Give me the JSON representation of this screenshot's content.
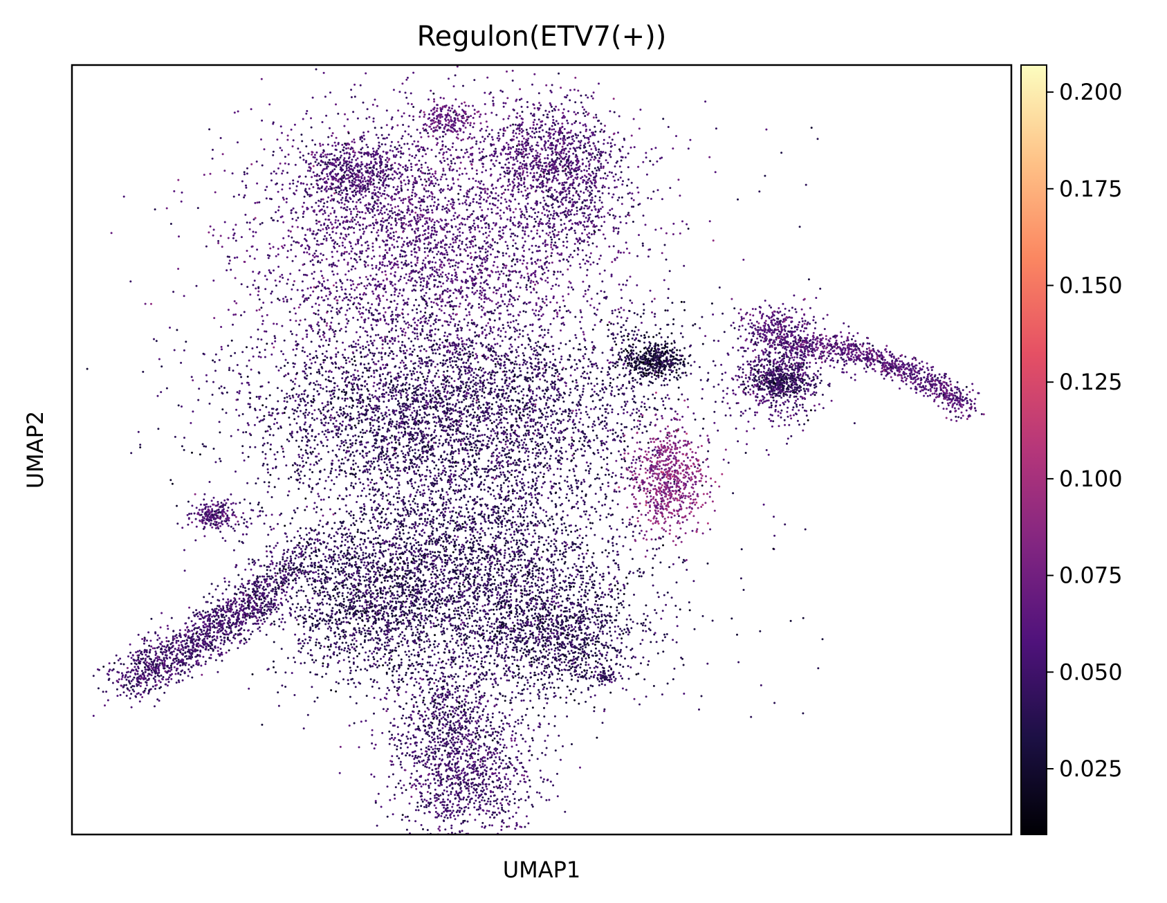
{
  "chart_data": {
    "type": "scatter",
    "title": "Regulon(ETV7(+))",
    "xlabel": "UMAP1",
    "ylabel": "UMAP2",
    "colormap": "magma",
    "colorbar": {
      "range": [
        0.008,
        0.207
      ],
      "ticks": [
        0.025,
        0.05,
        0.075,
        0.1,
        0.125,
        0.15,
        0.175,
        0.2
      ],
      "tick_labels": [
        "0.025",
        "0.050",
        "0.075",
        "0.100",
        "0.125",
        "0.150",
        "0.175",
        "0.200"
      ]
    },
    "xlim": [
      0,
      100
    ],
    "ylim": [
      0,
      100
    ],
    "grid": false,
    "legend": "none",
    "clusters": [
      {
        "id": "upper-main",
        "cx": 38,
        "cy": 77,
        "sx": 10,
        "sy": 9,
        "n": 3600,
        "value": 0.058
      },
      {
        "id": "upper-top-left",
        "cx": 30,
        "cy": 86,
        "sx": 2.8,
        "sy": 2.2,
        "n": 500,
        "value": 0.055
      },
      {
        "id": "upper-top-peak",
        "cx": 40,
        "cy": 93,
        "sx": 1.6,
        "sy": 1.2,
        "n": 180,
        "value": 0.068
      },
      {
        "id": "upper-top-right",
        "cx": 51,
        "cy": 89,
        "sx": 3.6,
        "sy": 3.4,
        "n": 700,
        "value": 0.057
      },
      {
        "id": "upper-right-flank",
        "cx": 54,
        "cy": 83,
        "sx": 2.5,
        "sy": 4,
        "n": 400,
        "value": 0.05
      },
      {
        "id": "middle-band",
        "cx": 40,
        "cy": 55,
        "sx": 11,
        "sy": 6,
        "n": 3800,
        "value": 0.042
      },
      {
        "id": "lower-main",
        "cx": 42,
        "cy": 34,
        "sx": 9,
        "sy": 8,
        "n": 3800,
        "value": 0.04
      },
      {
        "id": "lower-left-lobe",
        "cx": 31,
        "cy": 30,
        "sx": 4,
        "sy": 5,
        "n": 900,
        "value": 0.038
      },
      {
        "id": "lower-right-lobe",
        "cx": 52,
        "cy": 26,
        "sx": 4.5,
        "sy": 4,
        "n": 900,
        "value": 0.038
      },
      {
        "id": "bottom-blob",
        "cx": 41.5,
        "cy": 8,
        "sx": 4,
        "sy": 4.5,
        "n": 1100,
        "value": 0.05
      },
      {
        "id": "bottom-stem",
        "cx": 40,
        "cy": 17,
        "sx": 2.5,
        "sy": 4,
        "n": 400,
        "value": 0.045
      },
      {
        "id": "purple-island",
        "cx": 63.5,
        "cy": 46,
        "sx": 2,
        "sy": 3.4,
        "n": 700,
        "value": 0.085
      },
      {
        "id": "dark-island",
        "cx": 62,
        "cy": 61.5,
        "sx": 1.6,
        "sy": 1.1,
        "n": 400,
        "value": 0.028
      },
      {
        "id": "dark-island-halo",
        "cx": 60.5,
        "cy": 63,
        "sx": 3,
        "sy": 3,
        "n": 150,
        "value": 0.032
      },
      {
        "id": "tiny-island",
        "cx": 56.5,
        "cy": 20.5,
        "sx": 0.7,
        "sy": 0.5,
        "n": 60,
        "value": 0.04
      },
      {
        "id": "far-left-dot",
        "cx": 15.2,
        "cy": 41.5,
        "sx": 1.1,
        "sy": 1,
        "n": 180,
        "value": 0.058
      },
      {
        "id": "far-left-dot-halo",
        "cx": 17,
        "cy": 41,
        "sx": 2.5,
        "sy": 1.5,
        "n": 60,
        "value": 0.05
      },
      {
        "id": "right-arm-blob",
        "cx": 75,
        "cy": 60,
        "sx": 2.6,
        "sy": 3.5,
        "n": 650,
        "value": 0.055
      },
      {
        "id": "right-arm-blob-dark",
        "cx": 75.5,
        "cy": 59,
        "sx": 1.5,
        "sy": 1,
        "n": 300,
        "value": 0.04
      },
      {
        "id": "right-arm-top",
        "cx": 75,
        "cy": 66,
        "sx": 2,
        "sy": 1.5,
        "n": 200,
        "value": 0.06
      }
    ],
    "arcs": [
      {
        "id": "right-tail",
        "from": [
          76,
          64
        ],
        "via": [
          88,
          63
        ],
        "to": [
          95.5,
          55
        ],
        "n": 900,
        "spread": 0.9,
        "value": 0.06
      },
      {
        "id": "left-arm",
        "from": [
          6,
          20
        ],
        "via": [
          14,
          25
        ],
        "to": [
          21,
          32
        ],
        "n": 1300,
        "spread": 1.6,
        "value": 0.05
      },
      {
        "id": "left-arm-link",
        "from": [
          21,
          32
        ],
        "via": [
          24,
          36
        ],
        "to": [
          27,
          37
        ],
        "n": 250,
        "spread": 1.6,
        "value": 0.045
      }
    ],
    "background_scatter": {
      "n": 220,
      "xrange": [
        18,
        80
      ],
      "yrange": [
        15,
        95
      ],
      "value": 0.04
    }
  }
}
